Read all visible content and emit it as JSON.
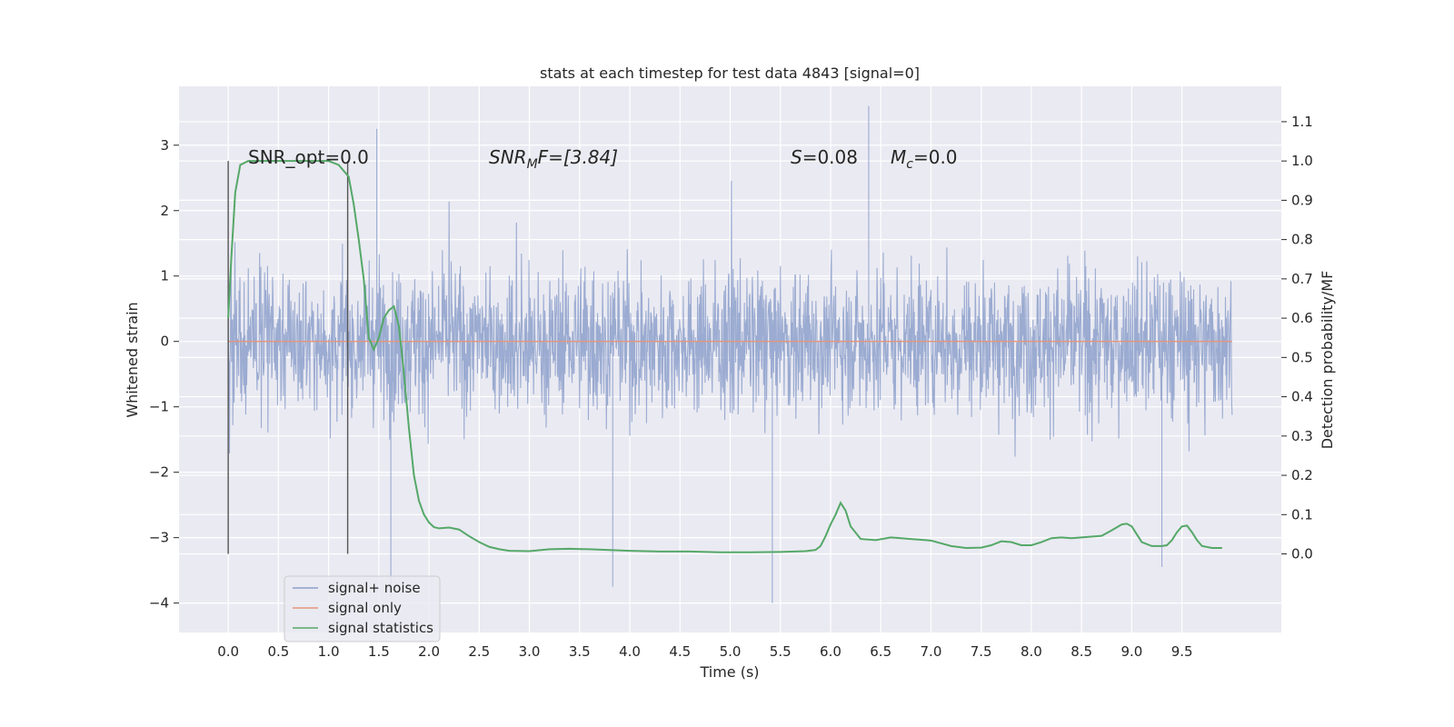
{
  "chart_data": {
    "type": "line",
    "title": "stats at each timestep for test data 4843 [signal=0]",
    "xlabel": "Time (s)",
    "ylabel_left": "Whitened strain",
    "ylabel_right": "Detection probability/MF",
    "xlim": [
      -0.49,
      10.49
    ],
    "ylim_left": [
      -4.45,
      3.9
    ],
    "ylim_right": [
      -0.2,
      1.19
    ],
    "x_ticks": [
      "0.0",
      "0.5",
      "1.0",
      "1.5",
      "2.0",
      "2.5",
      "3.0",
      "3.5",
      "4.0",
      "4.5",
      "5.0",
      "5.5",
      "6.0",
      "6.5",
      "7.0",
      "7.5",
      "8.0",
      "8.5",
      "9.0",
      "9.5"
    ],
    "y_ticks_left": [
      "−4",
      "−3",
      "−2",
      "−1",
      "0",
      "1",
      "2",
      "3"
    ],
    "y_ticks_right": [
      "0.0",
      "0.1",
      "0.2",
      "0.3",
      "0.4",
      "0.5",
      "0.6",
      "0.7",
      "0.8",
      "0.9",
      "1.0",
      "1.1"
    ],
    "grid": true,
    "legend_position": "lower-left",
    "vertical_lines_x": [
      0.0,
      1.19
    ],
    "annotations": {
      "snr_opt": "SNR_opt=0.0",
      "snr_mf_main": "SNR",
      "snr_mf_sub": "M",
      "snr_mf_tail": "F=[3.84]",
      "s_main": "S",
      "s_tail": "=0.08",
      "mc_main": "M",
      "mc_sub": "c",
      "mc_tail": "=0.0"
    },
    "series": [
      {
        "name": "signal+ noise",
        "color": "#8da0cb",
        "duration_s": 10.0,
        "typical_envelope": [
          -1.55,
          1.55
        ],
        "extremes": [
          [
            1.48,
            3.25
          ],
          [
            6.38,
            3.6
          ],
          [
            1.62,
            -3.9
          ],
          [
            5.42,
            -4.0
          ],
          [
            3.83,
            -3.75
          ],
          [
            9.3,
            -3.45
          ]
        ]
      },
      {
        "name": "signal only",
        "color": "#e5967a",
        "x": [
          0.0,
          10.0
        ],
        "values": [
          0.0,
          0.0
        ]
      },
      {
        "name": "signal statistics",
        "color": "#55a868",
        "axis": "right",
        "x": [
          0.0,
          0.03,
          0.07,
          0.12,
          0.2,
          0.3,
          0.5,
          0.8,
          1.0,
          1.1,
          1.2,
          1.25,
          1.3,
          1.35,
          1.4,
          1.45,
          1.5,
          1.55,
          1.6,
          1.65,
          1.7,
          1.75,
          1.8,
          1.85,
          1.9,
          1.95,
          2.0,
          2.05,
          2.1,
          2.2,
          2.3,
          2.4,
          2.5,
          2.6,
          2.7,
          2.8,
          3.0,
          3.2,
          3.4,
          3.6,
          3.8,
          4.0,
          4.3,
          4.6,
          4.9,
          5.2,
          5.5,
          5.75,
          5.85,
          5.9,
          5.95,
          6.0,
          6.05,
          6.1,
          6.15,
          6.2,
          6.3,
          6.45,
          6.6,
          6.8,
          7.0,
          7.2,
          7.35,
          7.5,
          7.6,
          7.7,
          7.8,
          7.9,
          8.0,
          8.1,
          8.2,
          8.3,
          8.4,
          8.5,
          8.6,
          8.7,
          8.8,
          8.9,
          8.95,
          9.0,
          9.05,
          9.1,
          9.2,
          9.3,
          9.35,
          9.4,
          9.45,
          9.5,
          9.55,
          9.6,
          9.65,
          9.7,
          9.8,
          9.9
        ],
        "values": [
          0.6,
          0.75,
          0.92,
          0.99,
          1.0,
          1.0,
          1.0,
          1.0,
          1.0,
          0.99,
          0.96,
          0.89,
          0.8,
          0.7,
          0.55,
          0.52,
          0.55,
          0.6,
          0.62,
          0.63,
          0.58,
          0.46,
          0.32,
          0.2,
          0.135,
          0.1,
          0.08,
          0.068,
          0.065,
          0.067,
          0.062,
          0.045,
          0.03,
          0.018,
          0.012,
          0.008,
          0.007,
          0.012,
          0.013,
          0.012,
          0.01,
          0.008,
          0.006,
          0.006,
          0.004,
          0.004,
          0.005,
          0.007,
          0.01,
          0.02,
          0.045,
          0.075,
          0.1,
          0.13,
          0.11,
          0.07,
          0.038,
          0.035,
          0.042,
          0.038,
          0.034,
          0.02,
          0.015,
          0.016,
          0.022,
          0.032,
          0.03,
          0.022,
          0.022,
          0.03,
          0.04,
          0.042,
          0.04,
          0.042,
          0.044,
          0.046,
          0.06,
          0.075,
          0.077,
          0.07,
          0.05,
          0.03,
          0.02,
          0.02,
          0.022,
          0.035,
          0.055,
          0.07,
          0.072,
          0.055,
          0.035,
          0.02,
          0.015,
          0.015
        ]
      }
    ]
  }
}
